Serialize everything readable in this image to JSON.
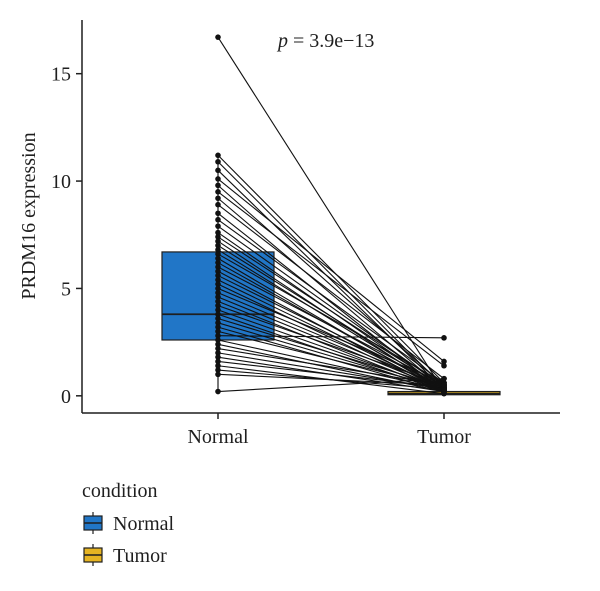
{
  "chart_data": {
    "type": "paired-boxplot",
    "ylabel": "PRDM16 expression",
    "xlabel": "",
    "ylim": [
      -0.8,
      17.5
    ],
    "yticks": [
      0,
      5,
      10,
      15
    ],
    "categories": [
      "Normal",
      "Tumor"
    ],
    "annotation": {
      "prefix": "p",
      "text": " = 3.9e−13"
    },
    "colors": {
      "Normal": "#2176c7",
      "Tumor": "#e6b422"
    },
    "legend": {
      "title": "condition",
      "placement": "bottom-left",
      "items": [
        {
          "label": "Normal",
          "color": "#2176c7"
        },
        {
          "label": "Tumor",
          "color": "#e6b422"
        }
      ]
    },
    "boxes": [
      {
        "category": "Normal",
        "q1": 2.6,
        "median": 3.8,
        "q3": 6.7,
        "whisker_low": 0.2,
        "whisker_high": 11.1
      },
      {
        "category": "Tumor",
        "q1": 0.05,
        "median": 0.1,
        "q3": 0.2,
        "whisker_low": 0.0,
        "whisker_high": 0.35
      }
    ],
    "pairs": [
      [
        16.7,
        0.2
      ],
      [
        11.2,
        0.6
      ],
      [
        10.9,
        0.4
      ],
      [
        10.5,
        0.3
      ],
      [
        10.1,
        1.6
      ],
      [
        9.8,
        0.5
      ],
      [
        9.5,
        1.4
      ],
      [
        9.2,
        0.3
      ],
      [
        8.9,
        0.8
      ],
      [
        8.5,
        0.2
      ],
      [
        8.2,
        0.6
      ],
      [
        7.9,
        0.4
      ],
      [
        7.6,
        0.3
      ],
      [
        7.4,
        0.5
      ],
      [
        7.2,
        0.2
      ],
      [
        7.0,
        0.4
      ],
      [
        6.8,
        0.3
      ],
      [
        6.6,
        0.6
      ],
      [
        6.4,
        0.2
      ],
      [
        6.2,
        0.3
      ],
      [
        6.0,
        0.5
      ],
      [
        5.8,
        0.2
      ],
      [
        5.6,
        0.4
      ],
      [
        5.4,
        0.3
      ],
      [
        5.2,
        0.2
      ],
      [
        5.0,
        0.6
      ],
      [
        4.8,
        0.4
      ],
      [
        4.6,
        0.3
      ],
      [
        4.4,
        0.2
      ],
      [
        4.2,
        0.5
      ],
      [
        4.0,
        0.3
      ],
      [
        3.8,
        0.2
      ],
      [
        3.6,
        0.4
      ],
      [
        3.4,
        0.3
      ],
      [
        3.2,
        0.2
      ],
      [
        3.0,
        0.4
      ],
      [
        2.8,
        2.7
      ],
      [
        2.6,
        0.3
      ],
      [
        2.4,
        0.2
      ],
      [
        2.2,
        0.5
      ],
      [
        2.0,
        0.3
      ],
      [
        1.8,
        0.2
      ],
      [
        1.6,
        0.4
      ],
      [
        1.4,
        0.1
      ],
      [
        1.2,
        0.3
      ],
      [
        1.0,
        0.5
      ],
      [
        0.2,
        0.8
      ]
    ]
  }
}
